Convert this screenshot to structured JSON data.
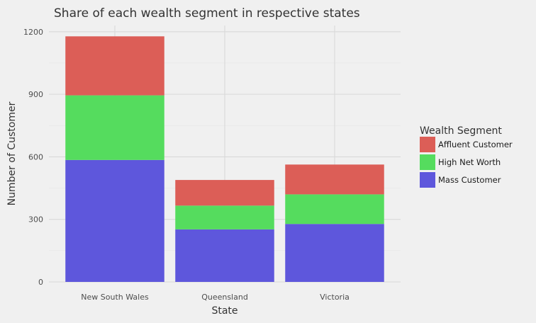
{
  "chart_data": {
    "type": "bar",
    "stacked": true,
    "title": "Share of each wealth segment in respective states",
    "xlabel": "State",
    "ylabel": "Number of Customer",
    "categories": [
      "New South Wales",
      "Queensland",
      "Victoria"
    ],
    "series": [
      {
        "name": "Mass Customer",
        "values": [
          585,
          252,
          278
        ],
        "color": "#5e57dc"
      },
      {
        "name": "High Net Worth",
        "values": [
          310,
          114,
          142
        ],
        "color": "#55dc5e"
      },
      {
        "name": "Affluent Customer",
        "values": [
          283,
          123,
          143
        ],
        "color": "#dc5e57"
      }
    ],
    "ylim": [
      0,
      1230
    ],
    "yticks": [
      0,
      300,
      600,
      900,
      1200
    ],
    "grid": true,
    "legend": {
      "title": "Wealth Segment",
      "position": "right",
      "order": [
        "Affluent Customer",
        "High Net Worth",
        "Mass Customer"
      ]
    }
  }
}
